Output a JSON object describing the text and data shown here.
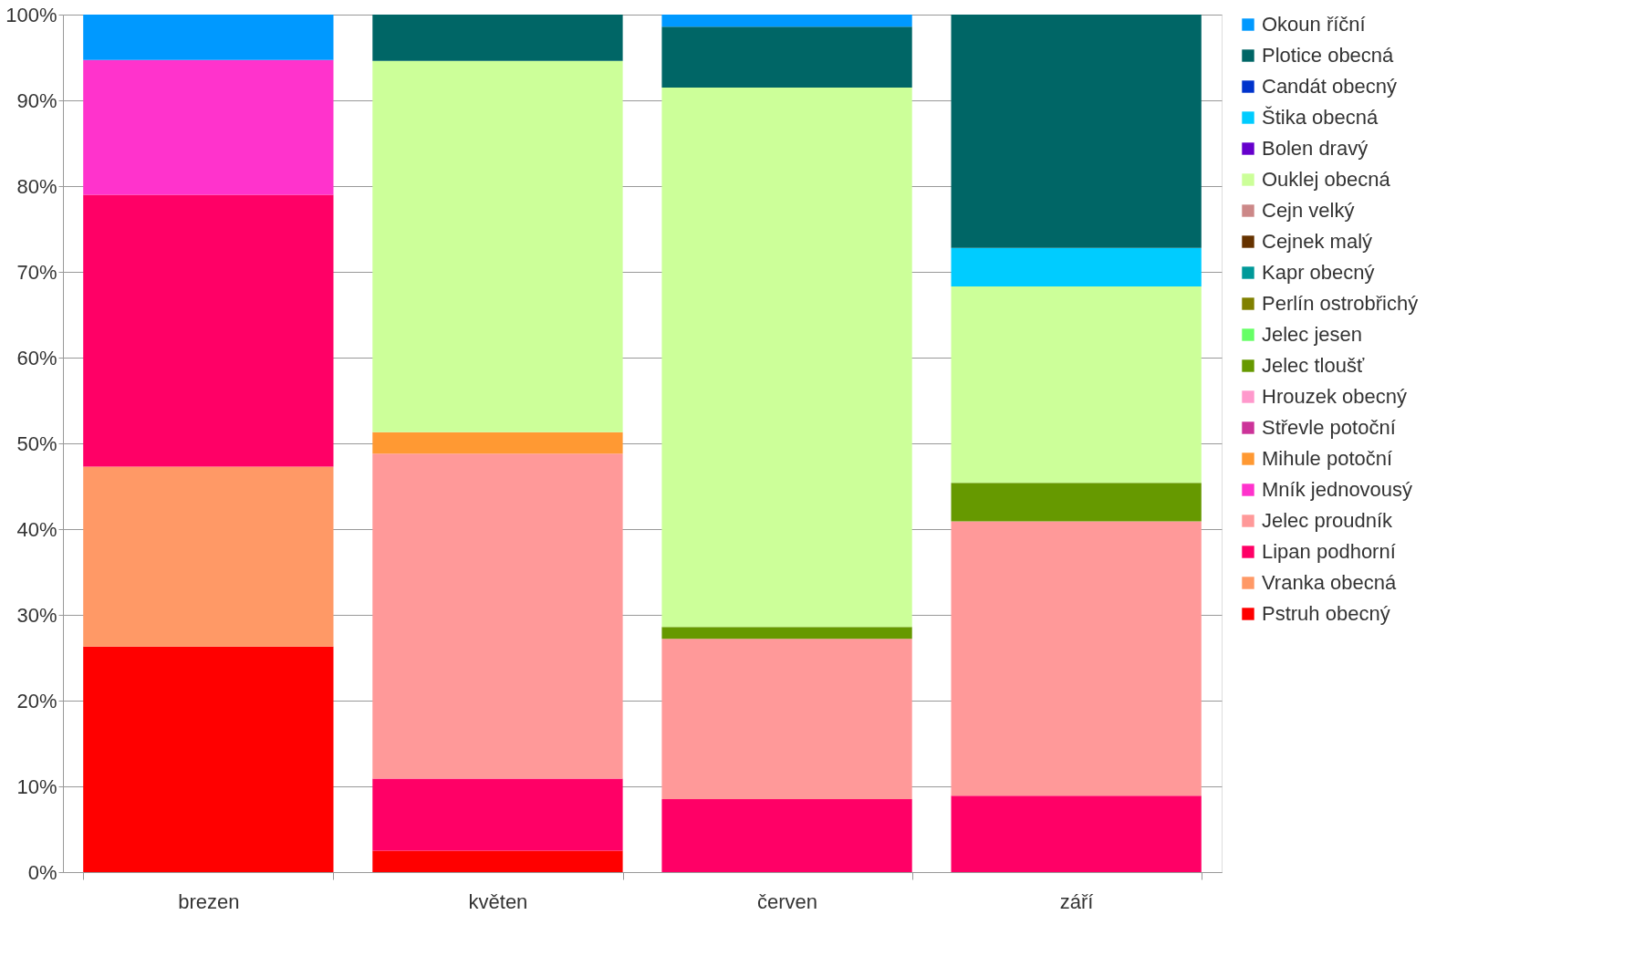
{
  "chart_data": {
    "type": "bar",
    "stacked": true,
    "categories": [
      "brezen",
      "květen",
      "červen",
      "září"
    ],
    "series": [
      {
        "name": "Pstruh obecný",
        "color": "#ff0000",
        "values": [
          26.3,
          2.5,
          null,
          null
        ]
      },
      {
        "name": "Vranka obecná",
        "color": "#ff9966",
        "values": [
          21.0,
          null,
          null,
          null
        ]
      },
      {
        "name": "Lipan podhorní",
        "color": "#ff0066",
        "values": [
          31.7,
          8.4,
          8.5,
          8.9
        ]
      },
      {
        "name": "Jelec proudník",
        "color": "#ff9999",
        "values": [
          null,
          37.9,
          18.7,
          32.0
        ]
      },
      {
        "name": "Mník jednovousý",
        "color": "#ff33cc",
        "values": [
          15.7,
          null,
          null,
          null
        ]
      },
      {
        "name": "Mihule potoční",
        "color": "#ff9933",
        "values": [
          null,
          2.5,
          null,
          null
        ]
      },
      {
        "name": "Střevle potoční",
        "color": "#cc3399",
        "values": [
          null,
          null,
          null,
          null
        ]
      },
      {
        "name": "Hrouzek obecný",
        "color": "#ff99cc",
        "values": [
          null,
          null,
          null,
          null
        ]
      },
      {
        "name": "Jelec tloušť",
        "color": "#669900",
        "values": [
          null,
          null,
          1.4,
          4.5
        ]
      },
      {
        "name": "Jelec jesen",
        "color": "#66ff66",
        "values": [
          null,
          null,
          null,
          null
        ]
      },
      {
        "name": "Perlín ostrobřichý",
        "color": "#808000",
        "values": [
          null,
          null,
          null,
          null
        ]
      },
      {
        "name": "Kapr obecný",
        "color": "#009999",
        "values": [
          null,
          null,
          null,
          null
        ]
      },
      {
        "name": "Cejnek malý",
        "color": "#663300",
        "values": [
          null,
          null,
          null,
          null
        ]
      },
      {
        "name": "Cejn velký",
        "color": "#cc8888",
        "values": [
          null,
          null,
          null,
          null
        ]
      },
      {
        "name": "Ouklej obecná",
        "color": "#ccff99",
        "values": [
          null,
          43.3,
          62.9,
          22.9
        ]
      },
      {
        "name": "Bolen dravý",
        "color": "#6600cc",
        "values": [
          null,
          null,
          null,
          null
        ]
      },
      {
        "name": "Štika obecná",
        "color": "#00ccff",
        "values": [
          null,
          null,
          null,
          4.5
        ]
      },
      {
        "name": "Candát obecný",
        "color": "#0033cc",
        "values": [
          null,
          null,
          null,
          null
        ]
      },
      {
        "name": "Plotice obecná",
        "color": "#006666",
        "values": [
          null,
          5.4,
          7.1,
          27.2
        ]
      },
      {
        "name": "Okoun říční",
        "color": "#0099ff",
        "values": [
          5.3,
          null,
          1.4,
          null
        ]
      }
    ],
    "ylim": [
      0,
      100
    ],
    "yticks": [
      {
        "value": 0,
        "label": "0%"
      },
      {
        "value": 10,
        "label": "10%"
      },
      {
        "value": 20,
        "label": "20%"
      },
      {
        "value": 30,
        "label": "30%"
      },
      {
        "value": 40,
        "label": "40%"
      },
      {
        "value": 50,
        "label": "50%"
      },
      {
        "value": 60,
        "label": "60%"
      },
      {
        "value": 70,
        "label": "70%"
      },
      {
        "value": 80,
        "label": "80%"
      },
      {
        "value": 90,
        "label": "90%"
      },
      {
        "value": 100,
        "label": "100%"
      }
    ],
    "grid": "y",
    "legend": "right"
  }
}
